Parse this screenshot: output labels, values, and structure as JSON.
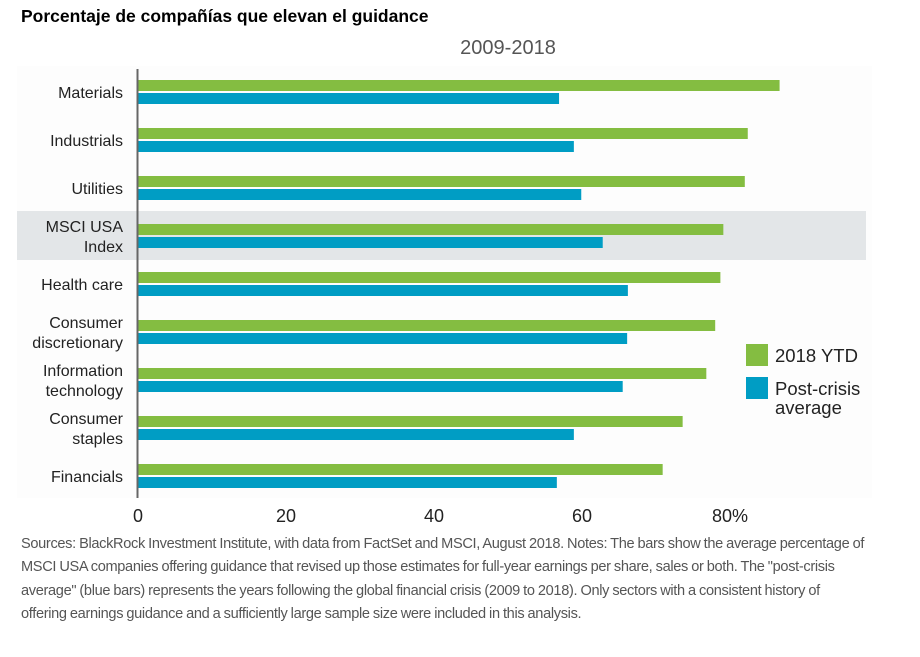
{
  "header": {
    "title": "Porcentaje de compañías que elevan el guidance",
    "subtitle": "2009-2018"
  },
  "notes": "Sources: BlackRock Investment Institute, with data from FactSet and MSCI, August 2018. Notes: The bars show the average percentage of MSCI USA companies offering guidance that revised up those estimates for full-year earnings per share, sales or both. The \"post-crisis average\" (blue bars) represents the years following the global financial crisis (2009 to 2018). Only sectors with a consistent history of offering earnings guidance and a sufficiently large sample size were included in this analysis.",
  "chart_data": {
    "type": "bar",
    "orientation": "horizontal",
    "title": "Porcentaje de compañías que elevan el guidance",
    "subtitle": "2009-2018",
    "xlabel": "",
    "ylabel": "",
    "xlim": [
      0,
      100
    ],
    "xticks": [
      0,
      20,
      40,
      60,
      80
    ],
    "xtick_labels": [
      "0",
      "20",
      "40",
      "60",
      "80%"
    ],
    "grid": false,
    "legend_position": "right",
    "highlighted_category": "MSCI USA Index",
    "categories": [
      {
        "lines": [
          "Materials"
        ]
      },
      {
        "lines": [
          "Industrials"
        ]
      },
      {
        "lines": [
          "Utilities"
        ]
      },
      {
        "lines": [
          "MSCI USA",
          "Index"
        ]
      },
      {
        "lines": [
          "Health care"
        ]
      },
      {
        "lines": [
          "Consumer",
          "discretionary"
        ]
      },
      {
        "lines": [
          "Information",
          "technology"
        ]
      },
      {
        "lines": [
          "Consumer",
          "staples"
        ]
      },
      {
        "lines": [
          "Financials"
        ]
      }
    ],
    "category_names": [
      "Materials",
      "Industrials",
      "Utilities",
      "MSCI USA Index",
      "Health care",
      "Consumer discretionary",
      "Information technology",
      "Consumer staples",
      "Financials"
    ],
    "series": [
      {
        "name": "2018 YTD",
        "legend_lines": [
          "2018 YTD"
        ],
        "color": "#84bd41",
        "values": [
          86.7,
          82.4,
          82.0,
          79.1,
          78.7,
          78.0,
          76.8,
          73.6,
          70.9
        ]
      },
      {
        "name": "Post-crisis average",
        "legend_lines": [
          "Post-crisis",
          "average"
        ],
        "color": "#009dc4",
        "values": [
          56.9,
          58.9,
          59.9,
          62.8,
          66.2,
          66.1,
          65.5,
          58.9,
          56.6
        ]
      }
    ],
    "colors": {
      "highlight_band": "#e3e6e8",
      "axis": "#666666",
      "plot_background": "#fdfdfd"
    }
  }
}
